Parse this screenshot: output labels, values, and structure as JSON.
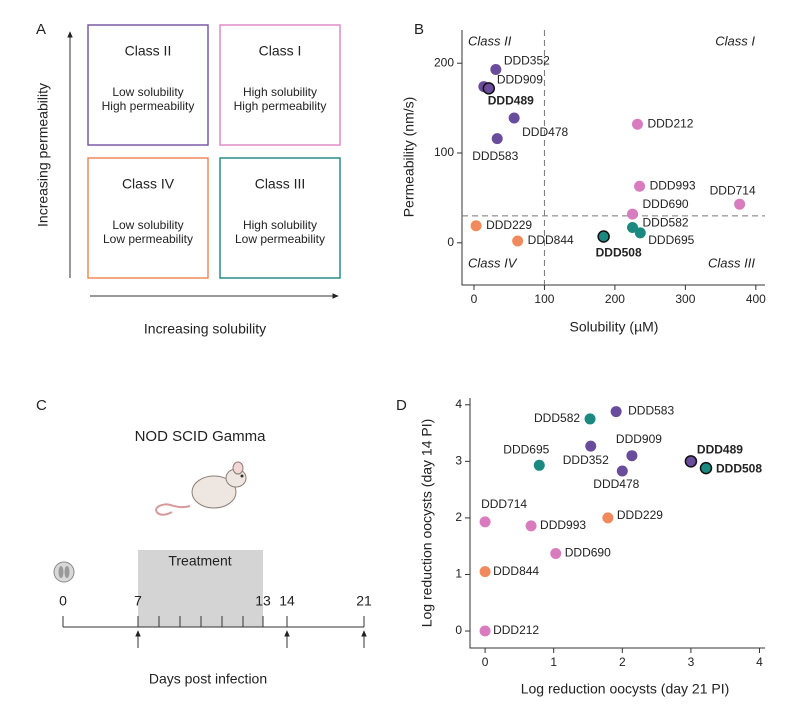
{
  "panel_a": {
    "label": "A",
    "y_arrow_label": "Increasing permeability",
    "x_arrow_label": "Increasing solubility",
    "boxes": [
      {
        "title": "Class II",
        "line1": "Low solubility",
        "line2": "High permeability",
        "color": "#7a5aa6"
      },
      {
        "title": "Class I",
        "line1": "High solubility",
        "line2": "High permeability",
        "color": "#e08cc8"
      },
      {
        "title": "Class IV",
        "line1": "Low solubility",
        "line2": "Low permeability",
        "color": "#ef8a5a"
      },
      {
        "title": "Class III",
        "line1": "High solubility",
        "line2": "Low permeability",
        "color": "#2a8f86"
      }
    ]
  },
  "panel_c": {
    "label": "C",
    "title": "NOD SCID Gamma",
    "band_label": "Treatment",
    "axis_label": "Days post infection",
    "days": [
      0,
      7,
      13,
      14,
      21
    ]
  },
  "chart_data": [
    {
      "type": "scatter",
      "label": "B",
      "xlabel": "Solubility (µM)",
      "ylabel": "Permeability (nm/s)",
      "xlim": [
        -17,
        413
      ],
      "ylim": [
        -47,
        237
      ],
      "xticks": [
        0,
        100,
        200,
        300,
        400
      ],
      "yticks": [
        0,
        100,
        200
      ],
      "vline": 100,
      "hline": 30,
      "quadrants": [
        "Class II",
        "Class I",
        "Class IV",
        "Class III"
      ],
      "points": [
        {
          "name": "DDD352",
          "x": 31,
          "y": 193,
          "color": "#6a4c9c"
        },
        {
          "name": "DDD909",
          "x": 14,
          "y": 174,
          "color": "#6a4c9c"
        },
        {
          "name": "DDD489",
          "x": 21,
          "y": 172,
          "color": "#6a4c9c",
          "highlight": true
        },
        {
          "name": "DDD478",
          "x": 57,
          "y": 139,
          "color": "#6a4c9c"
        },
        {
          "name": "DDD583",
          "x": 33,
          "y": 116,
          "color": "#6a4c9c"
        },
        {
          "name": "DDD212",
          "x": 232,
          "y": 132,
          "color": "#d97bbf"
        },
        {
          "name": "DDD993",
          "x": 235,
          "y": 63,
          "color": "#d97bbf"
        },
        {
          "name": "DDD714",
          "x": 377,
          "y": 43,
          "color": "#d97bbf"
        },
        {
          "name": "DDD690",
          "x": 225,
          "y": 32,
          "color": "#d97bbf"
        },
        {
          "name": "DDD582",
          "x": 225,
          "y": 17,
          "color": "#1a8a80"
        },
        {
          "name": "DDD695",
          "x": 236,
          "y": 11,
          "color": "#1a8a80"
        },
        {
          "name": "DDD508",
          "x": 184,
          "y": 7,
          "color": "#1a8a80",
          "highlight": true
        },
        {
          "name": "DDD229",
          "x": 3,
          "y": 19,
          "color": "#f08a5d"
        },
        {
          "name": "DDD844",
          "x": 62,
          "y": 2,
          "color": "#f08a5d"
        }
      ]
    },
    {
      "type": "scatter",
      "label": "D",
      "xlabel": "Log reduction oocysts (day 21 PI)",
      "ylabel": "Log reduction oocysts (day 14 PI)",
      "xlim": [
        -0.22,
        4.08
      ],
      "ylim": [
        -0.3,
        4.12
      ],
      "xticks": [
        0,
        1,
        2,
        3,
        4
      ],
      "yticks": [
        0,
        1,
        2,
        3,
        4
      ],
      "points": [
        {
          "name": "DDD583",
          "x": 1.91,
          "y": 3.88,
          "color": "#6a4c9c"
        },
        {
          "name": "DDD582",
          "x": 1.53,
          "y": 3.75,
          "color": "#1a8a80"
        },
        {
          "name": "DDD909",
          "x": 2.14,
          "y": 3.1,
          "color": "#6a4c9c"
        },
        {
          "name": "DDD352",
          "x": 1.54,
          "y": 3.27,
          "color": "#6a4c9c"
        },
        {
          "name": "DDD478",
          "x": 2.0,
          "y": 2.83,
          "color": "#6a4c9c"
        },
        {
          "name": "DDD695",
          "x": 0.79,
          "y": 2.93,
          "color": "#1a8a80"
        },
        {
          "name": "DDD489",
          "x": 3.0,
          "y": 3.0,
          "color": "#6a4c9c",
          "highlight": true
        },
        {
          "name": "DDD508",
          "x": 3.22,
          "y": 2.88,
          "color": "#1a8a80",
          "highlight": true
        },
        {
          "name": "DDD714",
          "x": 0,
          "y": 1.93,
          "color": "#d97bbf"
        },
        {
          "name": "DDD993",
          "x": 0.67,
          "y": 1.86,
          "color": "#d97bbf"
        },
        {
          "name": "DDD229",
          "x": 1.79,
          "y": 2.0,
          "color": "#f08a5d"
        },
        {
          "name": "DDD690",
          "x": 1.03,
          "y": 1.37,
          "color": "#d97bbf"
        },
        {
          "name": "DDD844",
          "x": 0,
          "y": 1.05,
          "color": "#f08a5d"
        },
        {
          "name": "DDD212",
          "x": 0,
          "y": 0,
          "color": "#d97bbf"
        }
      ]
    }
  ]
}
